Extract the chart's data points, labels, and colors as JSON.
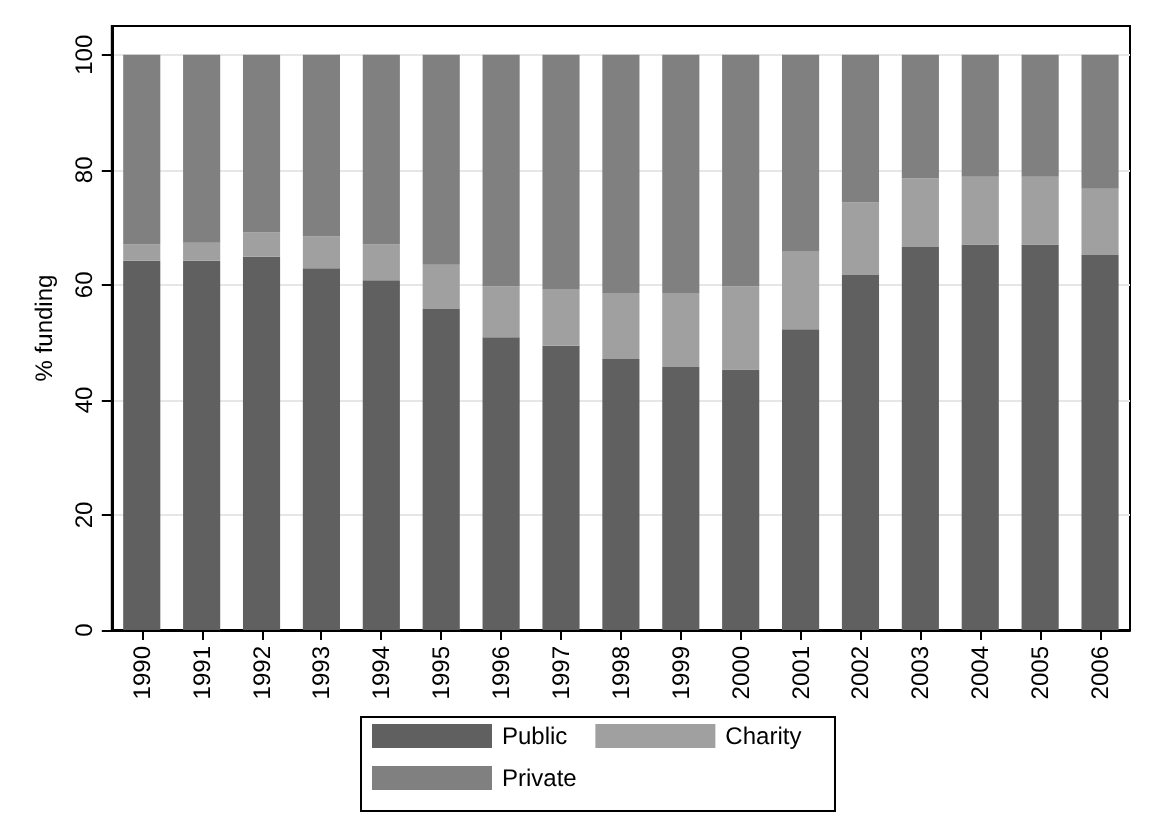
{
  "chart_data": {
    "type": "bar",
    "stacked": true,
    "ylabel": "% funding",
    "categories": [
      "1990",
      "1991",
      "1992",
      "1993",
      "1994",
      "1995",
      "1996",
      "1997",
      "1998",
      "1999",
      "2000",
      "2001",
      "2002",
      "2003",
      "2004",
      "2005",
      "2006"
    ],
    "series": [
      {
        "name": "Public",
        "color": "#606060",
        "values": [
          64.2,
          64.2,
          64.9,
          62.9,
          60.8,
          55.8,
          50.9,
          49.4,
          47.1,
          45.7,
          45.3,
          52.3,
          61.7,
          66.6,
          67.0,
          67.0,
          65.2
        ]
      },
      {
        "name": "Charity",
        "color": "#a0a0a0",
        "values": [
          2.8,
          3.1,
          4.2,
          5.5,
          6.2,
          7.7,
          8.8,
          9.9,
          11.5,
          12.9,
          14.4,
          13.6,
          12.6,
          11.9,
          11.8,
          11.8,
          11.5
        ]
      },
      {
        "name": "Private",
        "color": "#808080",
        "values": [
          33.0,
          32.7,
          30.9,
          31.6,
          33.0,
          36.5,
          40.3,
          40.7,
          41.4,
          41.4,
          40.3,
          34.1,
          25.7,
          21.5,
          21.2,
          21.2,
          23.3
        ]
      }
    ],
    "ylim": [
      0,
      105
    ],
    "yticks": [
      0,
      20,
      40,
      60,
      80,
      100
    ],
    "grid": "y",
    "legend": "bottom"
  }
}
